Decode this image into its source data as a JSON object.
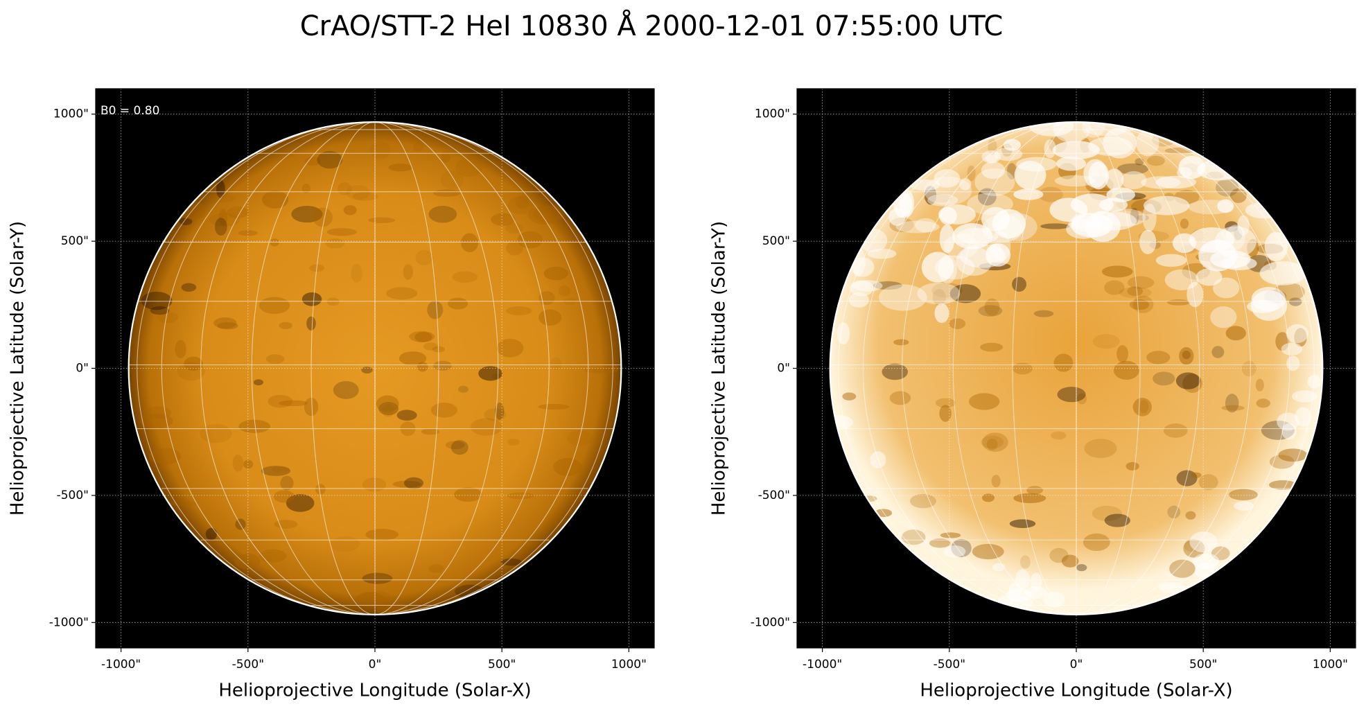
{
  "title": "CrAO/STT-2 HeI 10830 Å 2000-12-01 07:55:00 UTC",
  "chart_data": [
    {
      "type": "image",
      "xlabel": "Helioprojective Longitude (Solar-X)",
      "ylabel": "Helioprojective Latitude (Solar-Y)",
      "annotation": "B0 = 0.80",
      "grid": true,
      "xlim": [
        -1100,
        1100
      ],
      "ylim": [
        -1100,
        1100
      ],
      "xticks": [
        {
          "value": -1000,
          "label": "-1000\""
        },
        {
          "value": -500,
          "label": "-500\""
        },
        {
          "value": 0,
          "label": "0\""
        },
        {
          "value": 500,
          "label": "500\""
        },
        {
          "value": 1000,
          "label": "1000\""
        }
      ],
      "yticks": [
        {
          "value": -1000,
          "label": "-1000\""
        },
        {
          "value": -500,
          "label": "-500\""
        },
        {
          "value": 0,
          "label": "0\""
        },
        {
          "value": 500,
          "label": "500\""
        },
        {
          "value": 1000,
          "label": "1000\""
        }
      ]
    },
    {
      "type": "image",
      "xlabel": "Helioprojective Longitude (Solar-X)",
      "ylabel": "Helioprojective Latitude (Solar-Y)",
      "grid": true,
      "xlim": [
        -1100,
        1100
      ],
      "ylim": [
        -1100,
        1100
      ],
      "xticks": [
        {
          "value": -1000,
          "label": "-1000\""
        },
        {
          "value": -500,
          "label": "-500\""
        },
        {
          "value": 0,
          "label": "0\""
        },
        {
          "value": 500,
          "label": "500\""
        },
        {
          "value": 1000,
          "label": "1000\""
        }
      ],
      "yticks": [
        {
          "value": -1000,
          "label": "-1000\""
        },
        {
          "value": -500,
          "label": "-500\""
        },
        {
          "value": 0,
          "label": "0\""
        },
        {
          "value": 500,
          "label": "500\""
        },
        {
          "value": 1000,
          "label": "1000\""
        }
      ]
    }
  ]
}
